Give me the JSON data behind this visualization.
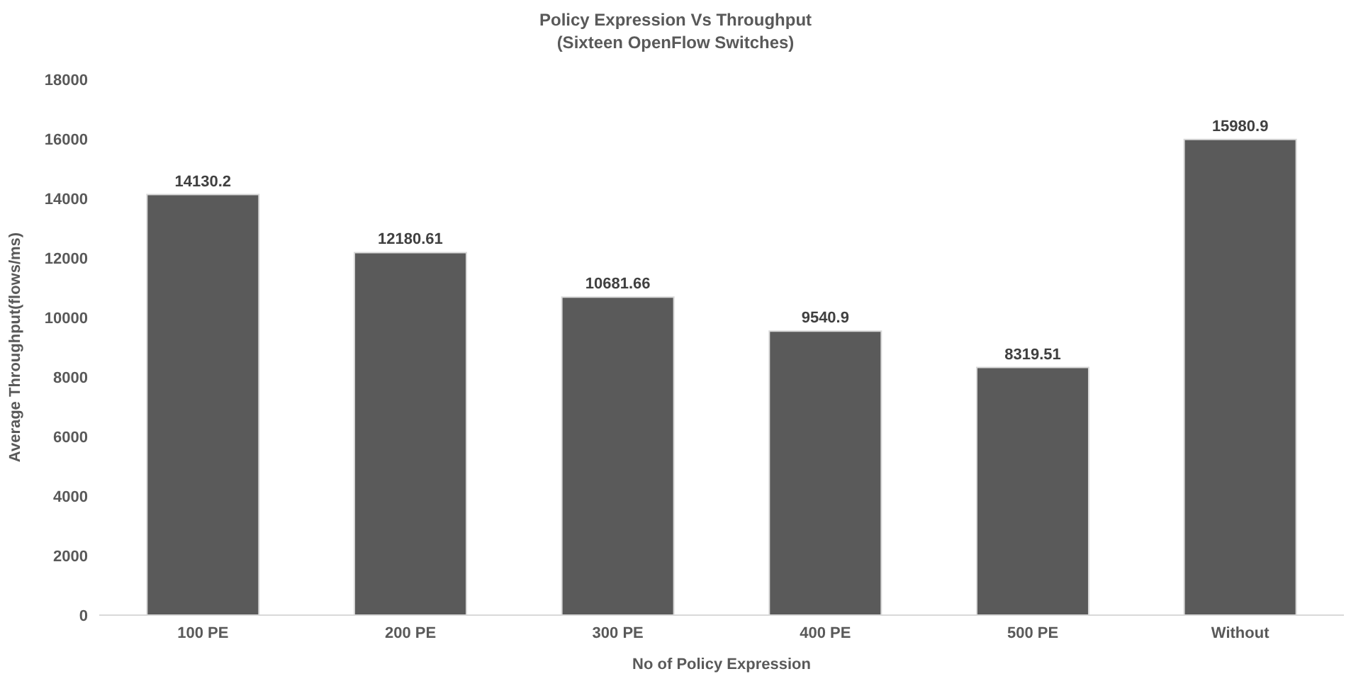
{
  "chart_data": {
    "type": "bar",
    "title": "Policy Expression Vs Throughput",
    "subtitle": "(Sixteen OpenFlow Switches)",
    "xlabel": "No of Policy Expression",
    "ylabel": "Average Throughput(flows/ms)",
    "categories": [
      "100 PE",
      "200 PE",
      "300 PE",
      "400 PE",
      "500 PE",
      "Without"
    ],
    "values": [
      14130.2,
      12180.61,
      10681.66,
      9540.9,
      8319.51,
      15980.9
    ],
    "color": "#5a5a5a",
    "ylim": [
      0,
      18000
    ],
    "yticks": [
      0,
      2000,
      4000,
      6000,
      8000,
      10000,
      12000,
      14000,
      16000,
      18000
    ],
    "grid": false,
    "legend": false,
    "data_labels": true
  }
}
